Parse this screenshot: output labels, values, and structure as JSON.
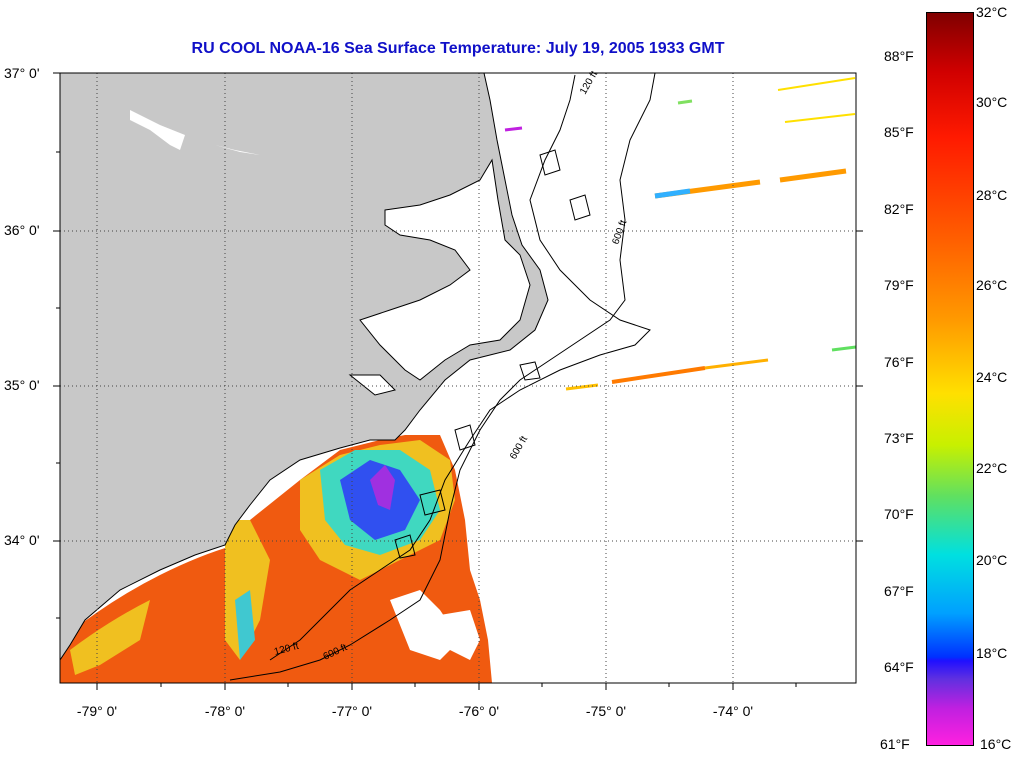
{
  "title": "RU COOL  NOAA-16  Sea Surface Temperature:  July 19, 2005 1933 GMT",
  "lat_labels": [
    "37° 0'",
    "36° 0'",
    "35° 0'",
    "34° 0'"
  ],
  "lon_labels": [
    "-79° 0'",
    "-78° 0'",
    "-77° 0'",
    "-76° 0'",
    "-75° 0'",
    "-74° 0'"
  ],
  "fahrenheit_labels": [
    "88°F",
    "85°F",
    "82°F",
    "79°F",
    "76°F",
    "73°F",
    "70°F",
    "67°F",
    "64°F",
    "61°F"
  ],
  "celsius_labels": [
    "32°C",
    "30°C",
    "28°C",
    "26°C",
    "24°C",
    "22°C",
    "20°C",
    "18°C",
    "16°C"
  ],
  "contour_labels": [
    "120 ft",
    "600 ft"
  ],
  "colors": {
    "title": "#1010c8",
    "land": "#c8c8c8",
    "sea": "#ffffff"
  }
}
